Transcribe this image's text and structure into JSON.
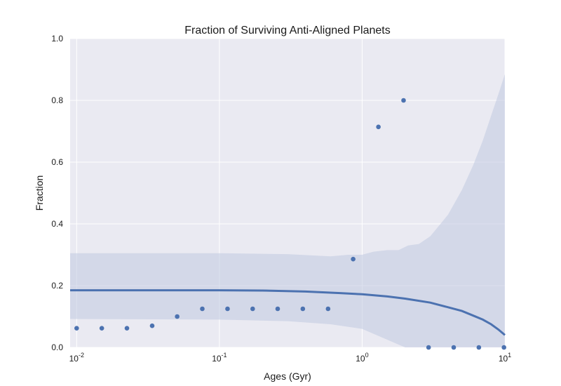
{
  "chart_data": {
    "type": "scatter",
    "title": "Fraction of Surviving Anti-Aligned Planets",
    "xlabel": "Ages (Gyr)",
    "ylabel": "Fraction",
    "xscale": "log",
    "xlim": [
      0.009,
      10
    ],
    "ylim": [
      0.0,
      1.0
    ],
    "grid": true,
    "colors": {
      "background": "#eaeaf2",
      "grid": "#ffffff",
      "points": "#4c72b0",
      "fit": "#4c72b0",
      "band": "#bfc8e0"
    },
    "x_ticks": [
      {
        "value": 0.01,
        "base": "10",
        "exp": "-2"
      },
      {
        "value": 0.1,
        "base": "10",
        "exp": "-1"
      },
      {
        "value": 1,
        "base": "10",
        "exp": "0"
      },
      {
        "value": 10,
        "base": "10",
        "exp": "1"
      }
    ],
    "y_ticks": [
      "0.0",
      "0.2",
      "0.4",
      "0.6",
      "0.8",
      "1.0"
    ],
    "points": [
      {
        "x": 0.01,
        "y": 0.062
      },
      {
        "x": 0.015,
        "y": 0.062
      },
      {
        "x": 0.0225,
        "y": 0.062
      },
      {
        "x": 0.0338,
        "y": 0.07
      },
      {
        "x": 0.0506,
        "y": 0.1
      },
      {
        "x": 0.0759,
        "y": 0.125
      },
      {
        "x": 0.114,
        "y": 0.125
      },
      {
        "x": 0.171,
        "y": 0.125
      },
      {
        "x": 0.256,
        "y": 0.125
      },
      {
        "x": 0.384,
        "y": 0.125
      },
      {
        "x": 0.577,
        "y": 0.125
      },
      {
        "x": 0.865,
        "y": 0.286
      },
      {
        "x": 1.3,
        "y": 0.714
      },
      {
        "x": 1.95,
        "y": 0.8
      },
      {
        "x": 2.92,
        "y": 0.0
      },
      {
        "x": 4.38,
        "y": 0.0
      },
      {
        "x": 6.57,
        "y": 0.0
      },
      {
        "x": 9.85,
        "y": 0.0
      }
    ],
    "fit_line": [
      {
        "x": 0.009,
        "y": 0.185
      },
      {
        "x": 0.05,
        "y": 0.185
      },
      {
        "x": 0.1,
        "y": 0.185
      },
      {
        "x": 0.2,
        "y": 0.184
      },
      {
        "x": 0.4,
        "y": 0.181
      },
      {
        "x": 0.7,
        "y": 0.176
      },
      {
        "x": 1.0,
        "y": 0.172
      },
      {
        "x": 1.5,
        "y": 0.165
      },
      {
        "x": 2.0,
        "y": 0.158
      },
      {
        "x": 3.0,
        "y": 0.145
      },
      {
        "x": 4.0,
        "y": 0.13
      },
      {
        "x": 5.0,
        "y": 0.118
      },
      {
        "x": 6.0,
        "y": 0.103
      },
      {
        "x": 7.0,
        "y": 0.09
      },
      {
        "x": 8.0,
        "y": 0.075
      },
      {
        "x": 9.0,
        "y": 0.058
      },
      {
        "x": 10.0,
        "y": 0.04
      }
    ],
    "confidence_band": {
      "upper": [
        {
          "x": 0.009,
          "y": 0.305
        },
        {
          "x": 0.1,
          "y": 0.305
        },
        {
          "x": 0.3,
          "y": 0.302
        },
        {
          "x": 0.6,
          "y": 0.295
        },
        {
          "x": 0.8,
          "y": 0.3
        },
        {
          "x": 1.0,
          "y": 0.3
        },
        {
          "x": 1.2,
          "y": 0.31
        },
        {
          "x": 1.5,
          "y": 0.315
        },
        {
          "x": 1.8,
          "y": 0.315
        },
        {
          "x": 2.1,
          "y": 0.33
        },
        {
          "x": 2.5,
          "y": 0.335
        },
        {
          "x": 3.0,
          "y": 0.36
        },
        {
          "x": 4.0,
          "y": 0.43
        },
        {
          "x": 5.0,
          "y": 0.51
        },
        {
          "x": 6.0,
          "y": 0.59
        },
        {
          "x": 7.0,
          "y": 0.67
        },
        {
          "x": 8.0,
          "y": 0.75
        },
        {
          "x": 9.0,
          "y": 0.82
        },
        {
          "x": 10.0,
          "y": 0.885
        }
      ],
      "lower": [
        {
          "x": 0.009,
          "y": 0.092
        },
        {
          "x": 0.1,
          "y": 0.09
        },
        {
          "x": 0.3,
          "y": 0.085
        },
        {
          "x": 0.6,
          "y": 0.075
        },
        {
          "x": 1.0,
          "y": 0.06
        },
        {
          "x": 2.0,
          "y": 0.0
        },
        {
          "x": 10.0,
          "y": 0.0
        }
      ]
    }
  }
}
